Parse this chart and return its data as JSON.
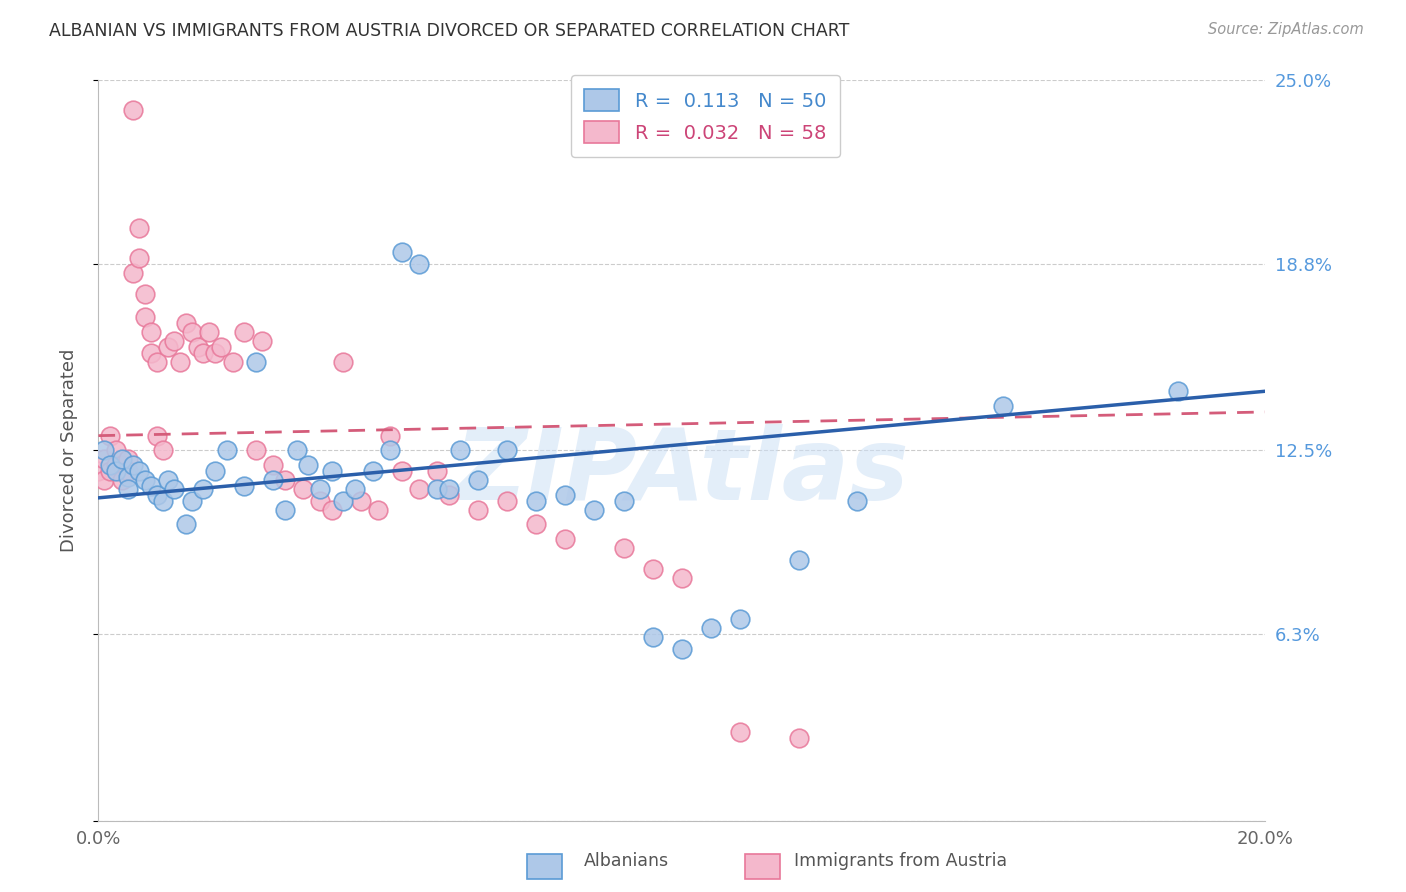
{
  "title": "ALBANIAN VS IMMIGRANTS FROM AUSTRIA DIVORCED OR SEPARATED CORRELATION CHART",
  "source": "Source: ZipAtlas.com",
  "ylabel": "Divorced or Separated",
  "xlim": [
    0.0,
    0.2
  ],
  "ylim": [
    0.0,
    0.25
  ],
  "yticks": [
    0.0,
    0.063,
    0.125,
    0.188,
    0.25
  ],
  "ytick_labels": [
    "",
    "6.3%",
    "12.5%",
    "18.8%",
    "25.0%"
  ],
  "xticks": [
    0.0,
    0.05,
    0.1,
    0.15,
    0.2
  ],
  "xtick_labels": [
    "0.0%",
    "",
    "",
    "",
    "20.0%"
  ],
  "legend_R_blue": "0.113",
  "legend_N_blue": "50",
  "legend_R_pink": "0.032",
  "legend_N_pink": "58",
  "legend_label_blue": "Albanians",
  "legend_label_pink": "Immigrants from Austria",
  "watermark": "ZIPAtlas",
  "blue_color": "#aec8e8",
  "pink_color": "#f4b8cc",
  "blue_edge_color": "#5b9bd5",
  "pink_edge_color": "#e8789a",
  "blue_line_color": "#2b5faa",
  "pink_line_color": "#d45c7a",
  "right_tick_color": "#5599dd",
  "background_color": "#ffffff",
  "albanians_x": [
    0.001,
    0.002,
    0.003,
    0.004,
    0.005,
    0.005,
    0.006,
    0.007,
    0.008,
    0.009,
    0.01,
    0.011,
    0.012,
    0.013,
    0.015,
    0.016,
    0.018,
    0.02,
    0.022,
    0.025,
    0.027,
    0.03,
    0.032,
    0.034,
    0.036,
    0.038,
    0.04,
    0.042,
    0.044,
    0.047,
    0.05,
    0.052,
    0.055,
    0.058,
    0.06,
    0.062,
    0.065,
    0.07,
    0.075,
    0.08,
    0.085,
    0.09,
    0.095,
    0.1,
    0.105,
    0.11,
    0.12,
    0.13,
    0.155,
    0.185
  ],
  "albanians_y": [
    0.125,
    0.12,
    0.118,
    0.122,
    0.116,
    0.112,
    0.12,
    0.118,
    0.115,
    0.113,
    0.11,
    0.108,
    0.115,
    0.112,
    0.1,
    0.108,
    0.112,
    0.118,
    0.125,
    0.113,
    0.155,
    0.115,
    0.105,
    0.125,
    0.12,
    0.112,
    0.118,
    0.108,
    0.112,
    0.118,
    0.125,
    0.192,
    0.188,
    0.112,
    0.112,
    0.125,
    0.115,
    0.125,
    0.108,
    0.11,
    0.105,
    0.108,
    0.062,
    0.058,
    0.065,
    0.068,
    0.088,
    0.108,
    0.14,
    0.145
  ],
  "austria_x": [
    0.0,
    0.001,
    0.001,
    0.002,
    0.002,
    0.003,
    0.003,
    0.004,
    0.004,
    0.005,
    0.005,
    0.006,
    0.006,
    0.007,
    0.007,
    0.008,
    0.008,
    0.009,
    0.009,
    0.01,
    0.01,
    0.011,
    0.012,
    0.013,
    0.014,
    0.015,
    0.016,
    0.017,
    0.018,
    0.019,
    0.02,
    0.021,
    0.023,
    0.025,
    0.027,
    0.028,
    0.03,
    0.032,
    0.035,
    0.038,
    0.04,
    0.042,
    0.045,
    0.048,
    0.05,
    0.052,
    0.055,
    0.058,
    0.06,
    0.065,
    0.07,
    0.075,
    0.08,
    0.09,
    0.095,
    0.1,
    0.11,
    0.12
  ],
  "austria_y": [
    0.118,
    0.122,
    0.115,
    0.13,
    0.118,
    0.12,
    0.125,
    0.12,
    0.115,
    0.122,
    0.118,
    0.185,
    0.24,
    0.19,
    0.2,
    0.178,
    0.17,
    0.165,
    0.158,
    0.155,
    0.13,
    0.125,
    0.16,
    0.162,
    0.155,
    0.168,
    0.165,
    0.16,
    0.158,
    0.165,
    0.158,
    0.16,
    0.155,
    0.165,
    0.125,
    0.162,
    0.12,
    0.115,
    0.112,
    0.108,
    0.105,
    0.155,
    0.108,
    0.105,
    0.13,
    0.118,
    0.112,
    0.118,
    0.11,
    0.105,
    0.108,
    0.1,
    0.095,
    0.092,
    0.085,
    0.082,
    0.03,
    0.028
  ],
  "blue_trend_x": [
    0.0,
    0.2
  ],
  "blue_trend_y": [
    0.109,
    0.145
  ],
  "pink_trend_x": [
    0.0,
    0.2
  ],
  "pink_trend_y": [
    0.13,
    0.138
  ]
}
